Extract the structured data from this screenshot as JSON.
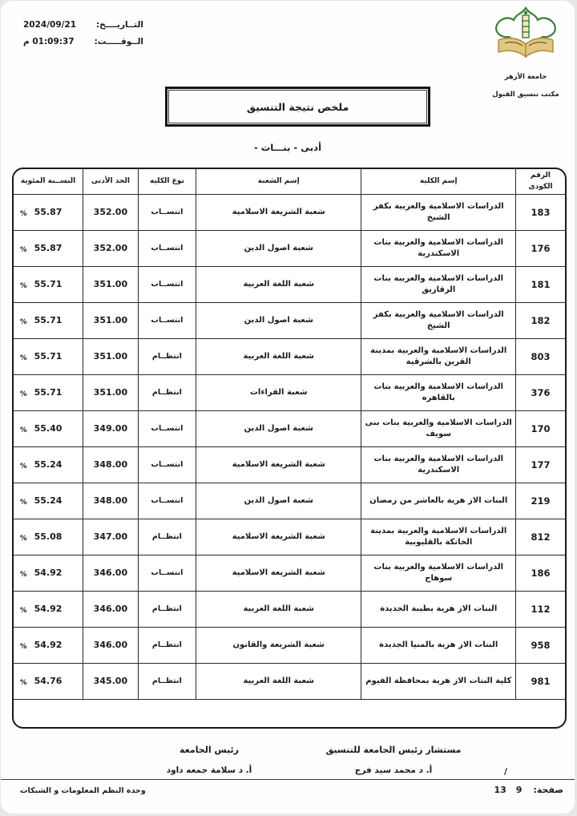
{
  "meta": {
    "date_label": "التــاريــــخ:",
    "date_value": "2024/09/21",
    "time_label": "الــوقـــــت:",
    "time_value": "01:09:37 م"
  },
  "org": {
    "university": "جامعة الأزهر",
    "office": "مكتب تنسيق القبول"
  },
  "title": "ملخص نتيجة التنسيق",
  "subtitle": "- أدبى - بنـــات",
  "colors": {
    "logo_green": "#3e7d3c",
    "logo_gold": "#e2c77f",
    "logo_gold_dark": "#a98a3f"
  },
  "table": {
    "percent_sign": "%",
    "headers": {
      "pct": "النســبة المئوية",
      "min": "الحد الأدنى",
      "type": "نوع الكلية",
      "branch": "إسم الشعبة",
      "college": "إسم الكلية",
      "number": "الرقم الكودى"
    },
    "rows": [
      {
        "number": "183",
        "college": "الدراسات الاسلامية والعربية بكفر الشيخ",
        "branch": "شعبة الشريعة الاسلامية",
        "type": "انتســاب",
        "min": "352.00",
        "pct": "55.87"
      },
      {
        "number": "176",
        "college": "الدراسات الاسلامية والعربية بنات الاسكندرية",
        "branch": "شعبة اصول الدين",
        "type": "انتســاب",
        "min": "352.00",
        "pct": "55.87"
      },
      {
        "number": "181",
        "college": "الدراسات الاسلامية والعربية بنات الزقازيق",
        "branch": "شعبة اللغة العربية",
        "type": "انتســاب",
        "min": "351.00",
        "pct": "55.71"
      },
      {
        "number": "182",
        "college": "الدراسات الاسلامية والعربية بكفر الشيخ",
        "branch": "شعبة اصول الدين",
        "type": "انتســاب",
        "min": "351.00",
        "pct": "55.71"
      },
      {
        "number": "803",
        "college": "الدراسات الاسلامية والعربية بمدينة القرين بالشرقية",
        "branch": "شعبة اللغة العربية",
        "type": "انتظــام",
        "min": "351.00",
        "pct": "55.71"
      },
      {
        "number": "376",
        "college": "الدراسات الاسلامية والعربية بنات بالقاهره",
        "branch": "شعبة القراءات",
        "type": "انتظــام",
        "min": "351.00",
        "pct": "55.71"
      },
      {
        "number": "170",
        "college": "الدراسات الاسلامية والعربية بنات بنى سويف",
        "branch": "شعبة اصول الدين",
        "type": "انتســاب",
        "min": "349.00",
        "pct": "55.40"
      },
      {
        "number": "177",
        "college": "الدراسات الاسلامية والعربية بنات الاسكندرية",
        "branch": "شعبة الشريعة الاسلامية",
        "type": "انتســاب",
        "min": "348.00",
        "pct": "55.24"
      },
      {
        "number": "219",
        "college": "البنات الاز هرية بالعاشر من رمضان",
        "branch": "شعبة اصول الدين",
        "type": "انتســاب",
        "min": "348.00",
        "pct": "55.24"
      },
      {
        "number": "812",
        "college": "الدراسات الاسلامية والعربية بمدينة الخانكة بالقليوبية",
        "branch": "شعبة الشريعة الاسلامية",
        "type": "انتظــام",
        "min": "347.00",
        "pct": "55.08"
      },
      {
        "number": "186",
        "college": "الدراسات الاسلامية والعربية بنات سوهاج",
        "branch": "شعبة الشريعة الاسلامية",
        "type": "انتســاب",
        "min": "346.00",
        "pct": "54.92"
      },
      {
        "number": "112",
        "college": "البنات الاز هرية بطيبة الجديدة",
        "branch": "شعبة اللغة العربية",
        "type": "انتظــام",
        "min": "346.00",
        "pct": "54.92"
      },
      {
        "number": "958",
        "college": "البنات الاز هرية بالمنيا الجديدة",
        "branch": "شعبة الشريعة والقانون",
        "type": "انتظــام",
        "min": "346.00",
        "pct": "54.92"
      },
      {
        "number": "981",
        "college": "كلية البنات الاز هرية بمحافظة الفيوم",
        "branch": "شعبة اللغة العربية",
        "type": "انتظــام",
        "min": "345.00",
        "pct": "54.76"
      }
    ]
  },
  "footer": {
    "advisor_title": "مستشار رئيس الجامعة للتنسيق",
    "advisor_name": "أ. د محمد سيد فرج",
    "president_title": "رئيس الجامعة",
    "president_name": "أ. د سلامة جمعه داود",
    "page_label": "صفحة:",
    "page_number": "9",
    "page_total": "13",
    "page_separator": "/",
    "unit": "وحدة النظم المعلومات و الشبكات"
  }
}
